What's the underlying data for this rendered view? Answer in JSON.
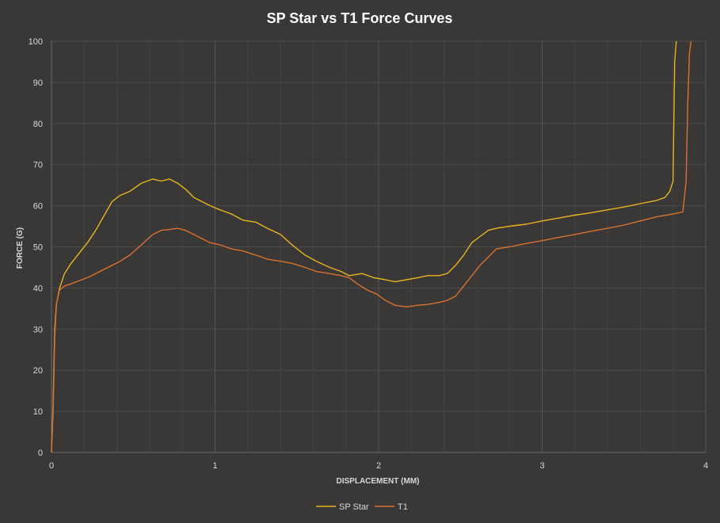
{
  "chart_data": {
    "type": "line",
    "title": "SP Star  vs  T1 Force Curves",
    "xlabel": "DISPLACEMENT (MM)",
    "ylabel": "FORCE (G)",
    "xlim": [
      0,
      4
    ],
    "ylim": [
      0,
      100
    ],
    "x_ticks": [
      "0",
      "1",
      "2",
      "3",
      "4"
    ],
    "y_ticks": [
      "0",
      "10",
      "20",
      "30",
      "40",
      "50",
      "60",
      "70",
      "80",
      "90",
      "100"
    ],
    "grid": true,
    "legend_position": "bottom-center",
    "colors": {
      "background": "#393837",
      "grid": "#4c4b4a",
      "text": "#d9d9d9",
      "title": "#ffffff"
    },
    "series": [
      {
        "name": "SP Star",
        "color": "#e8b41f",
        "x": [
          0.0,
          0.01,
          0.02,
          0.03,
          0.04,
          0.05,
          0.08,
          0.12,
          0.17,
          0.22,
          0.27,
          0.32,
          0.37,
          0.42,
          0.48,
          0.55,
          0.62,
          0.67,
          0.72,
          0.77,
          0.82,
          0.87,
          0.92,
          0.97,
          1.03,
          1.1,
          1.17,
          1.25,
          1.32,
          1.4,
          1.47,
          1.55,
          1.62,
          1.7,
          1.77,
          1.82,
          1.9,
          1.97,
          2.04,
          2.1,
          2.17,
          2.24,
          2.3,
          2.37,
          2.42,
          2.47,
          2.52,
          2.57,
          2.62,
          2.67,
          2.72,
          2.8,
          2.9,
          3.0,
          3.1,
          3.2,
          3.3,
          3.4,
          3.5,
          3.6,
          3.7,
          3.75,
          3.78,
          3.8,
          3.805,
          3.81,
          3.82
        ],
        "y": [
          0,
          12,
          30,
          36,
          38,
          40,
          43.5,
          46,
          48.5,
          51,
          54,
          57.5,
          61,
          62.5,
          63.5,
          65.5,
          66.5,
          66,
          66.5,
          65.5,
          64,
          62,
          61,
          60,
          59,
          58,
          56.5,
          56,
          54.5,
          53,
          50.5,
          48,
          46.5,
          45,
          44,
          43,
          43.5,
          42.5,
          42,
          41.5,
          42,
          42.5,
          43,
          43,
          43.5,
          45.5,
          48,
          51,
          52.5,
          54,
          54.5,
          55,
          55.5,
          56.3,
          57,
          57.7,
          58.3,
          59,
          59.7,
          60.5,
          61.3,
          62,
          63.5,
          66,
          80,
          95,
          100
        ]
      },
      {
        "name": "T1",
        "color": "#d8722f",
        "x": [
          0.0,
          0.01,
          0.02,
          0.03,
          0.04,
          0.05,
          0.08,
          0.12,
          0.17,
          0.22,
          0.27,
          0.32,
          0.37,
          0.42,
          0.48,
          0.55,
          0.62,
          0.67,
          0.72,
          0.77,
          0.82,
          0.87,
          0.92,
          0.97,
          1.03,
          1.1,
          1.17,
          1.25,
          1.32,
          1.4,
          1.47,
          1.55,
          1.62,
          1.7,
          1.77,
          1.82,
          1.87,
          1.93,
          1.99,
          2.04,
          2.1,
          2.17,
          2.24,
          2.3,
          2.37,
          2.42,
          2.47,
          2.52,
          2.57,
          2.62,
          2.67,
          2.72,
          2.8,
          2.9,
          3.0,
          3.1,
          3.2,
          3.3,
          3.4,
          3.5,
          3.6,
          3.7,
          3.8,
          3.86,
          3.88,
          3.89,
          3.9,
          3.91
        ],
        "y": [
          0,
          10,
          28,
          36,
          38,
          39.5,
          40.5,
          41,
          41.8,
          42.5,
          43.5,
          44.5,
          45.5,
          46.5,
          48,
          50.5,
          53,
          54,
          54.2,
          54.5,
          54,
          53,
          52,
          51,
          50.5,
          49.5,
          49,
          48,
          47,
          46.5,
          46,
          45,
          44,
          43.5,
          43,
          42.5,
          41,
          39.5,
          38.5,
          37,
          35.8,
          35.4,
          35.8,
          36,
          36.5,
          37,
          38,
          40.5,
          43,
          45.5,
          47.5,
          49.5,
          50,
          50.8,
          51.5,
          52.3,
          53,
          53.8,
          54.5,
          55.3,
          56.3,
          57.3,
          58,
          58.5,
          66,
          85,
          97,
          100
        ]
      }
    ]
  }
}
